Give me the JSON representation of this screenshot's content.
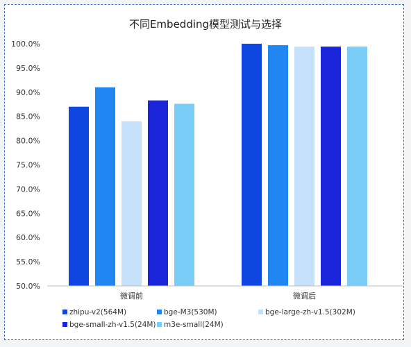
{
  "chart_data": {
    "type": "bar",
    "title": "不同Embedding模型测试与选择",
    "categories": [
      "微调前",
      "微调后"
    ],
    "ylim": [
      50,
      100
    ],
    "ytick_step": 5,
    "ytick_labels": [
      "50.0%",
      "55.0%",
      "60.0%",
      "65.0%",
      "70.0%",
      "75.0%",
      "80.0%",
      "85.0%",
      "90.0%",
      "95.0%",
      "100.0%"
    ],
    "grid": false,
    "legend_position": "bottom",
    "series": [
      {
        "name": "zhipu-v2(564M)",
        "color": "#1046e0",
        "values": [
          87.0,
          100.0
        ]
      },
      {
        "name": "bge-M3(530M)",
        "color": "#1f86f2",
        "values": [
          91.0,
          99.7
        ]
      },
      {
        "name": "bge-large-zh-v1.5(302M)",
        "color": "#c6e1fb",
        "values": [
          84.0,
          99.4
        ]
      },
      {
        "name": "bge-small-zh-v1.5(24M)",
        "color": "#1a24d8",
        "values": [
          88.3,
          99.4
        ]
      },
      {
        "name": "m3e-small(24M)",
        "color": "#79cdf7",
        "values": [
          87.6,
          99.4
        ]
      }
    ]
  }
}
